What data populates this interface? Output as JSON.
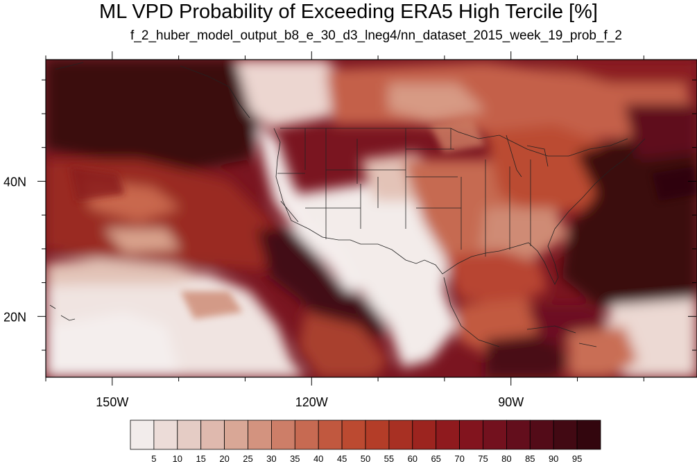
{
  "title": "ML VPD Probability of Exceeding ERA5 High Tercile [%]",
  "subtitle": "f_2_huber_model_output_b8_e_30_d3_lneg4/nn_dataset_2015_week_19_prob_f_2",
  "map": {
    "projection": "cylindrical-equidistant",
    "lon_range": [
      -160,
      -62
    ],
    "lat_range": [
      11,
      58
    ],
    "lon_ticks": [
      {
        "value": -150,
        "label": "150W"
      },
      {
        "value": -120,
        "label": "120W"
      },
      {
        "value": -90,
        "label": "90W"
      }
    ],
    "lat_ticks": [
      {
        "value": 40,
        "label": "40N"
      },
      {
        "value": 20,
        "label": "20N"
      }
    ],
    "field_description": "Dark (high probability) over most of the Pacific and western Atlantic; light (low) along the US West Coast, the Southwest and Mexico, and the subtropical Pacific band; moderate over the central and eastern US."
  },
  "colorbar": {
    "levels": [
      5,
      10,
      15,
      20,
      25,
      30,
      35,
      40,
      45,
      50,
      55,
      60,
      65,
      70,
      75,
      80,
      85,
      90,
      95
    ],
    "colors": [
      "#f2eceb",
      "#ecdcd8",
      "#e5ccc5",
      "#dfb9ae",
      "#d9a796",
      "#d3937f",
      "#cd7e68",
      "#c76a52",
      "#c1583f",
      "#bc4a31",
      "#b43d28",
      "#a83023",
      "#9c241f",
      "#8f1a1e",
      "#82141e",
      "#73111e",
      "#630e1c",
      "#530b18",
      "#420913",
      "#33060e"
    ]
  }
}
